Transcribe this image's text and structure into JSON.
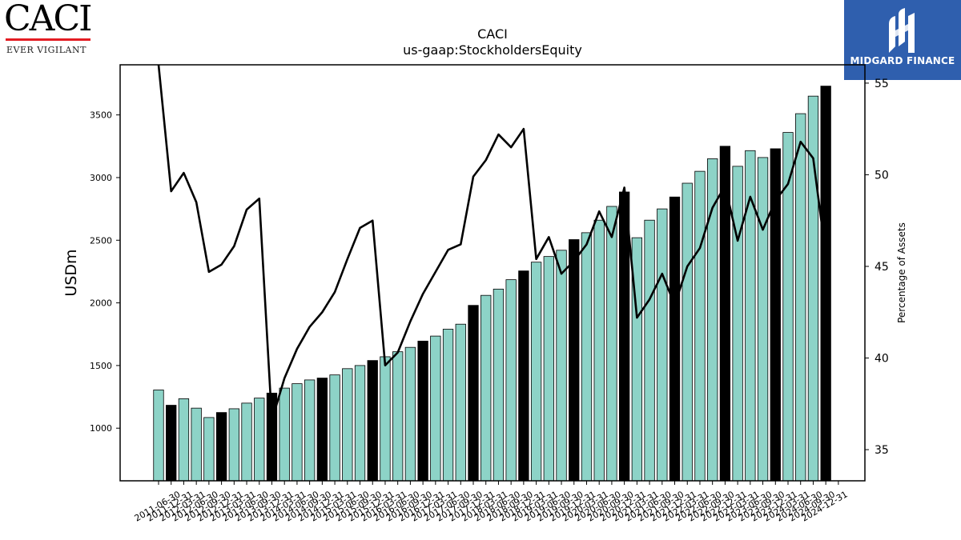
{
  "logos": {
    "left_brand": "CACI",
    "left_tagline": "EVER VIGILANT",
    "left_brand_color": "#e31c23",
    "right_brand": "MIDGARD FINANCE",
    "right_brand_color": "#2f5fae"
  },
  "chart_data": {
    "type": "bar",
    "title": "CACI",
    "subtitle": "us-gaap:StockholdersEquity",
    "ylabel": "USDm",
    "y2label": "Percentage of Assets",
    "ylim": [
      580,
      3900
    ],
    "y2lim": [
      33.3,
      56.0
    ],
    "yticks": [
      1000,
      1500,
      2000,
      2500,
      3000,
      3500
    ],
    "y2ticks": [
      35,
      40,
      45,
      50,
      55
    ],
    "bar_colors": {
      "quarter": "#8dd3c7",
      "fiscal_year_end": "#000000"
    },
    "line_color": "#000000",
    "categories": [
      "2011-06-30",
      "2011-09-30",
      "2011-12-31",
      "2012-03-31",
      "2012-06-30",
      "2012-09-30",
      "2012-12-31",
      "2013-03-31",
      "2013-06-30",
      "2013-09-30",
      "2013-12-31",
      "2014-03-31",
      "2014-06-30",
      "2014-09-30",
      "2014-12-31",
      "2015-03-31",
      "2015-06-30",
      "2015-09-30",
      "2015-12-31",
      "2016-03-31",
      "2016-06-30",
      "2016-09-30",
      "2016-12-31",
      "2017-03-31",
      "2017-06-30",
      "2017-09-30",
      "2017-12-31",
      "2018-03-31",
      "2018-06-30",
      "2018-09-30",
      "2018-12-31",
      "2019-03-31",
      "2019-06-30",
      "2019-09-30",
      "2019-12-31",
      "2020-03-31",
      "2020-06-30",
      "2020-09-30",
      "2020-12-31",
      "2021-03-31",
      "2021-06-30",
      "2021-09-30",
      "2021-12-31",
      "2022-03-31",
      "2022-06-30",
      "2022-09-30",
      "2022-12-31",
      "2023-03-31",
      "2023-06-30",
      "2023-09-30",
      "2023-12-31",
      "2024-03-31",
      "2024-06-30",
      "2024-09-30",
      "2024-12-31"
    ],
    "tick_labels_shown": [
      "2011-06-30",
      "2011-12-31",
      "2012-03-31",
      "2012-06-30",
      "2012-09-30",
      "2012-12-31",
      "2013-03-31",
      "2013-06-30",
      "2013-09-30",
      "2013-12-31",
      "2014-03-31",
      "2014-06-30",
      "2014-09-30",
      "2014-12-31",
      "2015-03-31",
      "2015-06-30",
      "2015-09-30",
      "2015-12-31",
      "2016-03-31",
      "2016-06-30",
      "2016-09-30",
      "2016-12-31",
      "2017-03-31",
      "2017-06-30",
      "2017-09-30",
      "2017-12-31",
      "2018-03-31",
      "2018-06-30",
      "2018-09-30",
      "2018-12-31",
      "2019-03-31",
      "2019-06-30",
      "2019-09-30",
      "2019-12-31",
      "2020-03-31",
      "2020-06-30",
      "2020-09-30",
      "2020-12-31",
      "2021-03-31",
      "2021-06-30",
      "2021-09-30",
      "2021-12-31",
      "2022-03-31",
      "2022-06-30",
      "2022-09-30",
      "2022-12-31",
      "2023-03-31",
      "2023-06-30",
      "2023-09-30",
      "2023-12-31",
      "2024-03-31",
      "2024-06-30",
      "2024-09-30",
      "2024-12-31"
    ],
    "fiscal_year_end": [
      false,
      true,
      false,
      false,
      false,
      true,
      false,
      false,
      false,
      true,
      false,
      false,
      false,
      true,
      false,
      false,
      false,
      true,
      false,
      false,
      false,
      true,
      false,
      false,
      false,
      true,
      false,
      false,
      false,
      true,
      false,
      false,
      false,
      true,
      false,
      false,
      false,
      true,
      false,
      false,
      false,
      true,
      false,
      false,
      false,
      true,
      false,
      false,
      false,
      true,
      false,
      false,
      false,
      true,
      false
    ],
    "series": [
      {
        "name": "USDm",
        "kind": "bar",
        "values": [
          1305,
          1183,
          1235,
          1160,
          1085,
          1125,
          1155,
          1200,
          1240,
          1280,
          1320,
          1355,
          1385,
          1400,
          1425,
          1475,
          1500,
          1540,
          1570,
          1610,
          1645,
          1695,
          1735,
          1790,
          1830,
          1980,
          2060,
          2110,
          2185,
          2255,
          2325,
          2370,
          2420,
          2505,
          2560,
          2660,
          2770,
          2885,
          2520,
          2660,
          2750,
          2845,
          2955,
          3050,
          3150,
          3250,
          3090,
          3215,
          3160,
          3230,
          3360,
          3510,
          3650,
          3730,
          null
        ]
      },
      {
        "name": "Percentage of Assets",
        "kind": "line",
        "axis": "right",
        "values": [
          56.0,
          49.1,
          50.1,
          48.5,
          44.7,
          45.1,
          46.1,
          48.1,
          48.7,
          36.6,
          38.9,
          40.5,
          41.7,
          42.5,
          43.6,
          45.4,
          47.1,
          47.5,
          39.6,
          40.3,
          42.0,
          43.5,
          44.7,
          45.9,
          46.2,
          49.9,
          50.8,
          52.2,
          51.5,
          52.5,
          45.4,
          46.6,
          44.6,
          45.3,
          46.2,
          48.0,
          46.6,
          49.3,
          42.2,
          43.2,
          44.6,
          42.9,
          45.0,
          46.0,
          48.2,
          49.4,
          46.4,
          48.8,
          47.0,
          48.6,
          49.5,
          51.8,
          50.9,
          45.6,
          null
        ]
      }
    ]
  }
}
